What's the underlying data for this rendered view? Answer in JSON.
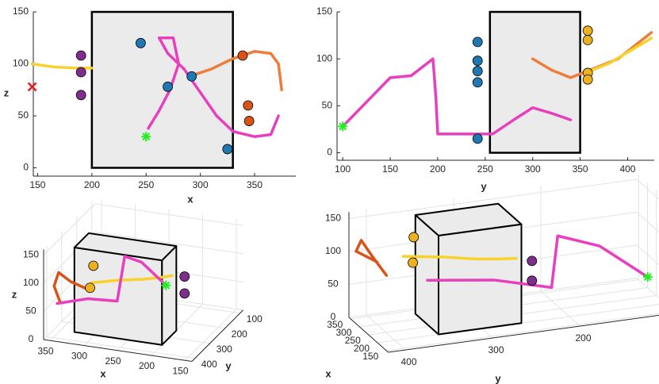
{
  "chart_data": [
    {
      "type": "line",
      "xlabel": "x",
      "ylabel": "z",
      "xlim": [
        146,
        388
      ],
      "ylim": [
        -8,
        150
      ],
      "xticks": [
        150,
        200,
        250,
        300,
        350
      ],
      "yticks": [
        0,
        50,
        100,
        150
      ],
      "box": {
        "x": [
          200,
          330
        ],
        "y": [
          0,
          150
        ]
      },
      "series": [
        {
          "type": "line",
          "color": "#f7d22a",
          "x": [
            145,
            165,
            185,
            200
          ],
          "values": [
            100,
            97,
            96,
            96
          ]
        },
        {
          "type": "line",
          "color": "#ee7d3a",
          "x": [
            290,
            310,
            330,
            350,
            365,
            372,
            375
          ],
          "values": [
            88,
            95,
            105,
            112,
            110,
            100,
            75
          ]
        },
        {
          "type": "line",
          "color": "#e83fbf",
          "x": [
            252,
            262,
            272,
            280,
            275,
            262,
            270,
            285,
            295,
            305,
            315,
            330,
            350,
            365,
            372
          ],
          "values": [
            38,
            55,
            75,
            100,
            125,
            125,
            110,
            95,
            80,
            65,
            50,
            35,
            30,
            32,
            50
          ]
        },
        {
          "type": "scatter",
          "color": "#7e2f8e",
          "x": [
            190,
            190,
            190
          ],
          "values": [
            108,
            92,
            70
          ]
        },
        {
          "type": "scatter",
          "color": "#1f77b4",
          "x": [
            245,
            270,
            292,
            325
          ],
          "values": [
            120,
            78,
            88,
            18
          ]
        },
        {
          "type": "scatter",
          "color": "#d95319",
          "x": [
            339,
            344,
            345
          ],
          "values": [
            108,
            60,
            45
          ]
        },
        {
          "type": "star",
          "color": "#22ee22",
          "x": [
            250
          ],
          "values": [
            30
          ]
        },
        {
          "type": "cross",
          "color": "#e41a1c",
          "x": [
            145
          ],
          "values": [
            78
          ]
        }
      ]
    },
    {
      "type": "line",
      "xlabel": "y",
      "xlim": [
        94,
        428
      ],
      "ylim": [
        -8,
        150
      ],
      "xticks": [
        100,
        150,
        200,
        250,
        300,
        350,
        400
      ],
      "yticks": [
        0,
        50,
        100,
        150
      ],
      "box": {
        "x": [
          255,
          350
        ],
        "y": [
          0,
          150
        ]
      },
      "series": [
        {
          "type": "line",
          "color": "#ee7d3a",
          "x": [
            300,
            320,
            340,
            360,
            390,
            425
          ],
          "values": [
            100,
            88,
            80,
            88,
            100,
            128
          ]
        },
        {
          "type": "line",
          "color": "#f7d22a",
          "x": [
            355,
            380,
            405,
            425
          ],
          "values": [
            85,
            95,
            110,
            122
          ]
        },
        {
          "type": "line",
          "color": "#e83fbf",
          "x": [
            100,
            150,
            172,
            195,
            198,
            200,
            230,
            258,
            280,
            300,
            320,
            340
          ],
          "values": [
            28,
            80,
            82,
            100,
            60,
            20,
            20,
            20,
            35,
            48,
            42,
            35
          ]
        },
        {
          "type": "scatter",
          "color": "#1f77b4",
          "x": [
            242,
            242,
            242,
            242,
            242
          ],
          "values": [
            118,
            98,
            87,
            75,
            15
          ]
        },
        {
          "type": "scatter",
          "color": "#edb120",
          "x": [
            358,
            358,
            358,
            358
          ],
          "values": [
            130,
            120,
            85,
            78
          ]
        },
        {
          "type": "star",
          "color": "#22ee22",
          "x": [
            100
          ],
          "values": [
            28
          ]
        }
      ]
    },
    {
      "type": "line3d",
      "xlabel": "x",
      "ylabel": "y",
      "zlabel": "z",
      "xlim": [
        140,
        360
      ],
      "ylim": [
        80,
        420
      ],
      "zlim": [
        0,
        160
      ],
      "xticks": [
        350,
        300,
        250,
        200,
        150
      ],
      "yticks": [
        100,
        200,
        300,
        400
      ],
      "zticks": [
        0,
        50,
        100,
        150
      ],
      "box": {
        "x": [
          200,
          330
        ],
        "y": [
          255,
          350
        ],
        "z": [
          0,
          150
        ]
      },
      "series": [
        {
          "type": "line",
          "color": "#d95319",
          "x": [
            345,
            350,
            340,
            320,
            300
          ],
          "y": [
            380,
            395,
            410,
            420,
            400
          ],
          "z": [
            60,
            90,
            120,
            110,
            95
          ]
        },
        {
          "type": "line",
          "color": "#f7d22a",
          "x": [
            300,
            270,
            240,
            220,
            205
          ],
          "y": [
            370,
            330,
            300,
            280,
            260
          ],
          "z": [
            98,
            97,
            96,
            97,
            98
          ]
        },
        {
          "type": "line",
          "color": "#e83fbf",
          "x": [
            250,
            275,
            290,
            300,
            330,
            360
          ],
          "y": [
            100,
            150,
            195,
            200,
            260,
            330
          ],
          "z": [
            30,
            80,
            100,
            20,
            35,
            40
          ]
        },
        {
          "type": "scatter",
          "color": "#7e2f8e",
          "x": [
            190,
            190
          ],
          "y": [
            245,
            245
          ],
          "z": [
            95,
            65
          ]
        },
        {
          "type": "scatter",
          "color": "#edb120",
          "x": [
            300,
            305
          ],
          "y": [
            358,
            358
          ],
          "z": [
            125,
            85
          ]
        },
        {
          "type": "star",
          "color": "#22ee22",
          "x": [
            250
          ],
          "y": [
            100
          ],
          "z": [
            30
          ]
        }
      ]
    },
    {
      "type": "line3d",
      "xlabel": "x",
      "ylabel": "y",
      "xlim": [
        140,
        360
      ],
      "ylim": [
        90,
        420
      ],
      "zlim": [
        0,
        160
      ],
      "xticks": [
        350,
        300,
        250,
        200,
        150
      ],
      "yticks": [
        400,
        300,
        200
      ],
      "zticks": [
        0,
        50,
        100,
        150
      ],
      "box": {
        "x": [
          200,
          330
        ],
        "y": [
          255,
          350
        ],
        "z": [
          0,
          150
        ]
      },
      "series": [
        {
          "type": "line",
          "color": "#d95319",
          "x": [
            345,
            350,
            340,
            320,
            300
          ],
          "y": [
            380,
            395,
            410,
            420,
            400
          ],
          "z": [
            60,
            90,
            120,
            110,
            95
          ]
        },
        {
          "type": "line",
          "color": "#f7d22a",
          "x": [
            300,
            270,
            240,
            220,
            205
          ],
          "y": [
            370,
            330,
            300,
            280,
            260
          ],
          "z": [
            98,
            97,
            96,
            97,
            98
          ]
        },
        {
          "type": "line",
          "color": "#e83fbf",
          "x": [
            250,
            275,
            290,
            300,
            330,
            360
          ],
          "y": [
            100,
            150,
            195,
            200,
            260,
            330
          ],
          "z": [
            30,
            80,
            100,
            20,
            35,
            40
          ]
        },
        {
          "type": "scatter",
          "color": "#7e2f8e",
          "x": [
            190,
            190
          ],
          "y": [
            245,
            245
          ],
          "z": [
            95,
            65
          ]
        },
        {
          "type": "scatter",
          "color": "#edb120",
          "x": [
            300,
            305
          ],
          "y": [
            358,
            358
          ],
          "z": [
            125,
            85
          ]
        },
        {
          "type": "star",
          "color": "#22ee22",
          "x": [
            250
          ],
          "y": [
            100
          ],
          "z": [
            30
          ]
        }
      ]
    }
  ]
}
